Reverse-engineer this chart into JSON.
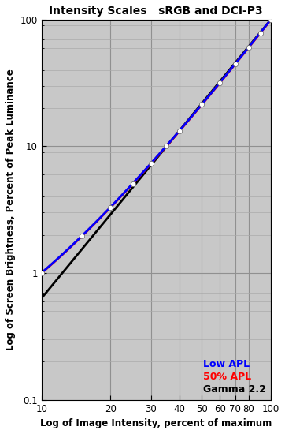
{
  "title": "Intensity Scales   sRGB and DCI-P3",
  "xlabel": "Log of Image Intensity, percent of maximum",
  "ylabel": "Log of Screen Brightness, Percent of Peak Luminance",
  "xlim": [
    10,
    100
  ],
  "ylim": [
    0.1,
    100
  ],
  "background_color": "#c8c8c8",
  "figure_background": "#ffffff",
  "legend_labels": [
    "Low APL",
    "50% APL",
    "Gamma 2.2"
  ],
  "legend_colors": [
    "#0000ff",
    "#ff0000",
    "#000000"
  ],
  "marker_color": "#ffffff",
  "marker_size": 4.5,
  "line_width": 2.0,
  "data_x": [
    10,
    15,
    20,
    25,
    30,
    35,
    40,
    50,
    60,
    70,
    80,
    90,
    100
  ]
}
